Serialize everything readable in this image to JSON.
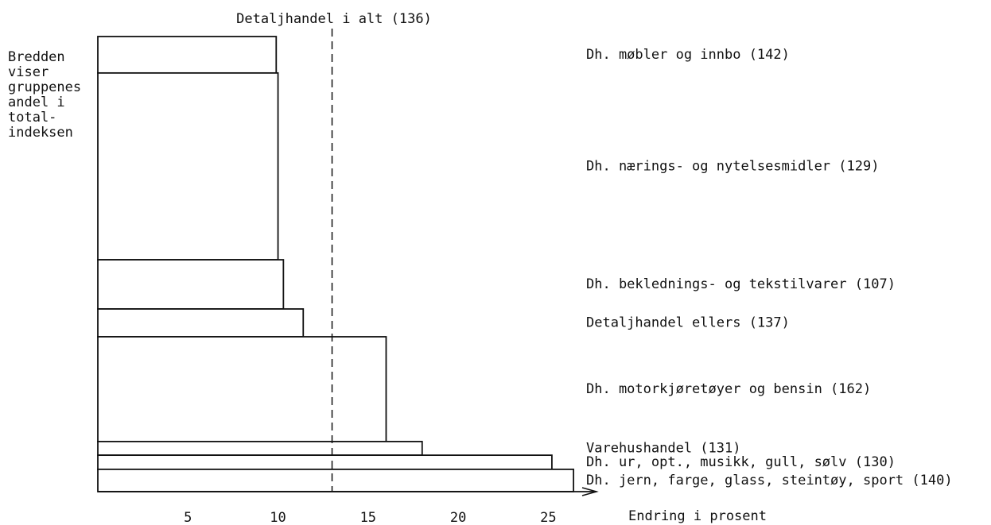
{
  "chart_data": {
    "type": "variwide_bar",
    "title": "Detaljhandel i alt (136)",
    "reference_value": 13,
    "annotation": [
      "Bredden",
      "viser",
      "gruppenes",
      "andel i",
      "total-",
      "indeksen"
    ],
    "xlabel": "Endring i prosent",
    "categories": [
      "Dh. møbler og innbo (142)",
      "Dh. nærings- og nytelsesmidler (129)",
      "Dh. beklednings- og tekstilvarer (107)",
      "Detaljhandel ellers (137)",
      "Dh. motorkjøretøyer og bensin (162)",
      "Varehushandel (131)",
      "Dh. ur, opt., musikk, gull, sølv (130)",
      "Dh. jern, farge, glass, steintøy, sport (140)"
    ],
    "values": [
      9.9,
      10.0,
      10.3,
      11.4,
      16.0,
      18.0,
      25.2,
      26.4
    ],
    "weights": [
      8.0,
      41.0,
      10.8,
      6.1,
      23.0,
      3.0,
      3.1,
      4.9
    ],
    "xlim": [
      0,
      27.5
    ],
    "xticks": [
      5,
      10,
      15,
      20,
      25
    ],
    "color": "#ffffff"
  }
}
